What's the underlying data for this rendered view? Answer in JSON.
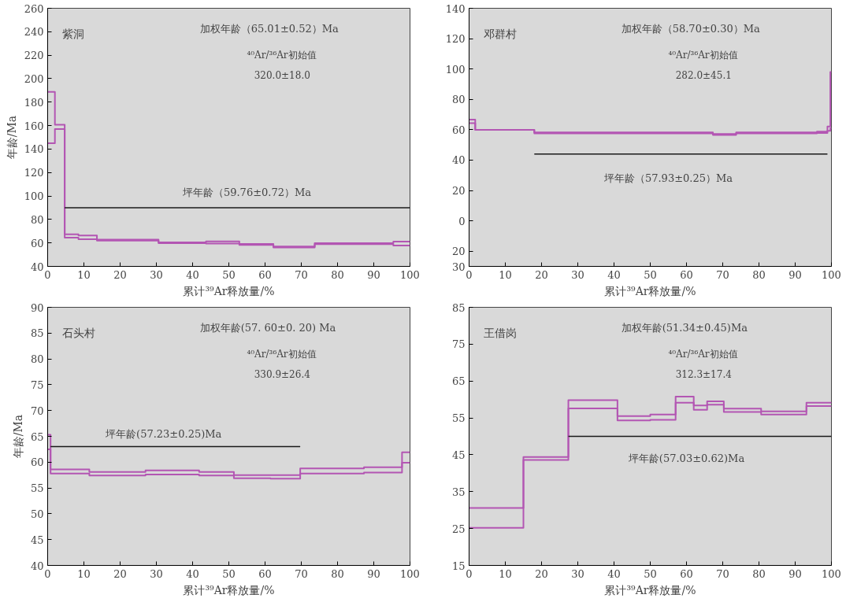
{
  "chart_data": [
    {
      "type": "step",
      "xlabel": "累计³⁹Ar释放量/%",
      "ylabel": "年龄/Ma",
      "xlim": [
        0,
        100
      ],
      "ylim": [
        40,
        260
      ],
      "xticks": [
        0,
        10,
        20,
        30,
        40,
        50,
        60,
        70,
        80,
        90,
        100
      ],
      "yticks": [
        40,
        60,
        80,
        100,
        120,
        140,
        160,
        180,
        200,
        220,
        240,
        260
      ],
      "grid": false,
      "annotations": [
        "紫洞",
        "加权年龄（65.01±0.52）Ma",
        "⁴⁰Ar/³⁶Ar初始值",
        "320.0±18.0",
        "坪年龄（59.76±0.72）Ma"
      ],
      "series": [
        {
          "color": "#b356b3",
          "x": [
            0,
            2.0,
            4.7,
            8.5,
            13.6,
            30.6,
            43.7,
            52.9,
            62.3,
            73.7,
            95.4,
            100
          ],
          "values": [
            188.8,
            160.8,
            67.3,
            66.4,
            62.8,
            60.4,
            61.3,
            59.1,
            56.9,
            59.8,
            61.1,
            61.1
          ]
        },
        {
          "color": "#b356b3",
          "x": [
            0,
            2.0,
            4.7,
            8.5,
            13.6,
            30.6,
            43.7,
            52.9,
            62.3,
            73.7,
            95.4,
            100
          ],
          "values": [
            145,
            157,
            64.4,
            63.2,
            62,
            59.8,
            59.4,
            58.3,
            56.1,
            59.0,
            57.8,
            57.8
          ]
        },
        {
          "type": "line",
          "color": "#1a1a1a",
          "x": [
            4.7,
            100
          ],
          "values": [
            90,
            90
          ]
        }
      ]
    },
    {
      "type": "step",
      "xlabel": "累计³⁹Ar释放量/%",
      "xlim": [
        0,
        100
      ],
      "ylim": [
        -30,
        140
      ],
      "xticks": [
        0,
        10,
        20,
        30,
        40,
        50,
        60,
        70,
        80,
        90,
        100
      ],
      "yticks": [
        {
          "value": -30,
          "label": "30"
        },
        {
          "value": -20,
          "label": "20"
        },
        0,
        20,
        40,
        60,
        80,
        100,
        120,
        140
      ],
      "grid": false,
      "annotations": [
        "邓群村",
        "加权年龄（58.70±0.30）Ma",
        "⁴⁰Ar/³⁶Ar初始值",
        "282.0±45.1",
        "坪年龄（57.93±0.25）Ma"
      ],
      "series": [
        {
          "color": "#b356b3",
          "x": [
            0,
            1.7,
            18.0,
            67.3,
            73.7,
            96.0,
            98.9,
            99.7,
            100
          ],
          "values": [
            66.7,
            59.9,
            58.2,
            57.2,
            58.2,
            58.7,
            62.1,
            98,
            98
          ]
        },
        {
          "color": "#b356b3",
          "x": [
            0,
            1.7,
            18.0,
            67.3,
            73.7,
            96.0,
            98.9,
            99.7,
            100
          ],
          "values": [
            64.3,
            59.9,
            57.6,
            56.6,
            57.6,
            57.9,
            59.3,
            61,
            61
          ]
        },
        {
          "type": "line",
          "color": "#1a1a1a",
          "x": [
            18,
            98.9
          ],
          "values": [
            44,
            44
          ]
        }
      ]
    },
    {
      "type": "step",
      "xlabel": "累计³⁹Ar释放量/%",
      "ylabel": "年龄/Ma",
      "xlim": [
        0,
        100
      ],
      "ylim": [
        40,
        90
      ],
      "xticks": [
        0,
        10,
        20,
        30,
        40,
        50,
        60,
        70,
        80,
        90,
        100
      ],
      "yticks": [
        40,
        45,
        50,
        55,
        60,
        65,
        70,
        75,
        80,
        85,
        90
      ],
      "grid": false,
      "annotations": [
        "石头村",
        "加权年龄(57. 60±0. 20) Ma",
        "⁴⁰Ar/³⁶Ar初始值",
        "330.9±26.4",
        "坪年龄(57.23±0.25)Ma"
      ],
      "series": [
        {
          "color": "#b356b3",
          "x": [
            0,
            0.8,
            11.5,
            27,
            41.8,
            51.4,
            61.5,
            69.7,
            87.3,
            97.8,
            100
          ],
          "values": [
            65.3,
            58.6,
            58.1,
            58.4,
            58.1,
            57.5,
            57.5,
            58.8,
            59.0,
            61.9,
            61.9
          ]
        },
        {
          "color": "#b356b3",
          "x": [
            0,
            0.8,
            11.5,
            27,
            41.8,
            51.4,
            61.5,
            69.7,
            87.3,
            97.8,
            100
          ],
          "values": [
            62.5,
            57.8,
            57.4,
            57.6,
            57.4,
            56.9,
            56.8,
            57.8,
            58.0,
            59.9,
            59.9
          ]
        },
        {
          "type": "line",
          "color": "#1a1a1a",
          "x": [
            0.8,
            69.7
          ],
          "values": [
            63,
            63
          ]
        }
      ]
    },
    {
      "type": "step",
      "xlabel": "累计³⁹Ar释放量/%",
      "xlim": [
        0,
        100
      ],
      "ylim": [
        15,
        85
      ],
      "xticks": [
        0,
        10,
        20,
        30,
        40,
        50,
        60,
        70,
        80,
        90,
        100
      ],
      "yticks": [
        15,
        25,
        35,
        45,
        55,
        65,
        75,
        85
      ],
      "grid": false,
      "annotations": [
        "王借岗",
        "加权年龄(51.34±0.45)Ma",
        "⁴⁰Ar/³⁶Ar初始值",
        "312.3±17.4",
        "坪年龄(57.03±0.62)Ma"
      ],
      "series": [
        {
          "color": "#b356b3",
          "x": [
            0,
            15,
            27.4,
            40.95,
            50,
            57,
            62,
            65.7,
            70.3,
            80.6,
            93.1,
            100
          ],
          "values": [
            30.6,
            44.4,
            59.8,
            55.5,
            55.9,
            60.8,
            58.4,
            59.5,
            57.5,
            56.8,
            59.1,
            59.1
          ]
        },
        {
          "color": "#b356b3",
          "x": [
            0,
            15,
            27.4,
            40.95,
            50,
            57,
            62,
            65.7,
            70.3,
            80.6,
            93.1,
            100
          ],
          "values": [
            25.2,
            43.6,
            57.6,
            54.3,
            54.5,
            59.1,
            57.2,
            58.6,
            56.6,
            55.9,
            58.2,
            58.2
          ]
        },
        {
          "type": "line",
          "color": "#1a1a1a",
          "x": [
            27.4,
            100
          ],
          "values": [
            50,
            50
          ]
        }
      ]
    }
  ]
}
